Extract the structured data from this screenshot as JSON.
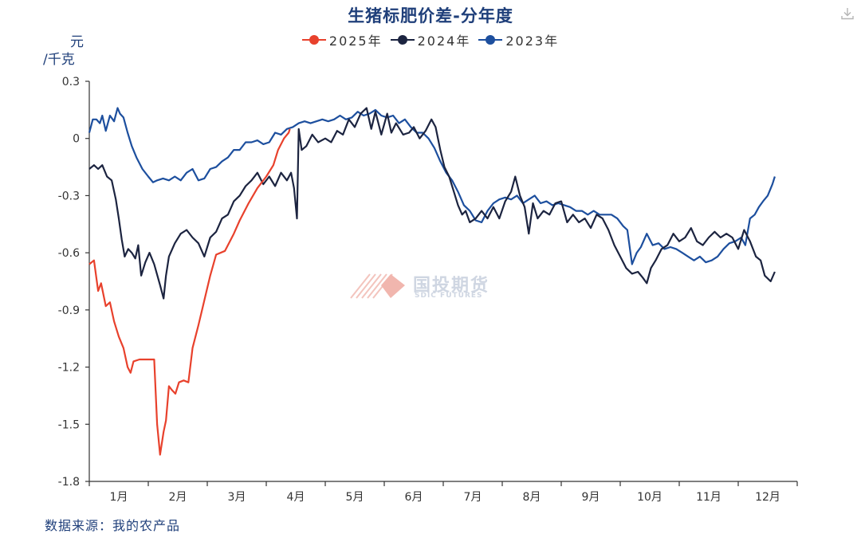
{
  "chart_data": {
    "type": "line",
    "title": "生猪标肥价差-分年度",
    "ylabel": "元/千克",
    "ylabel_parts": [
      "元",
      "/千克"
    ],
    "ylim": [
      -1.8,
      0.3
    ],
    "yticks": [
      0.3,
      0,
      -0.3,
      -0.6,
      -0.9,
      -1.2,
      -1.5,
      -1.8
    ],
    "ytick_labels": [
      "0.3",
      "0",
      "-0.3",
      "-0.6",
      "-0.9",
      "-1.2",
      "-1.5",
      "-1.8"
    ],
    "x_unit": "month",
    "xlim": [
      1,
      13
    ],
    "categories": [
      "1月",
      "2月",
      "3月",
      "4月",
      "5月",
      "6月",
      "7月",
      "8月",
      "9月",
      "10月",
      "11月",
      "12月"
    ],
    "legend_position": "top-center",
    "grid": false,
    "series": [
      {
        "name": "2025年",
        "color": "#e8412c",
        "points": [
          [
            1.0,
            -0.66
          ],
          [
            1.08,
            -0.64
          ],
          [
            1.15,
            -0.8
          ],
          [
            1.2,
            -0.76
          ],
          [
            1.28,
            -0.88
          ],
          [
            1.35,
            -0.86
          ],
          [
            1.42,
            -0.96
          ],
          [
            1.5,
            -1.04
          ],
          [
            1.58,
            -1.1
          ],
          [
            1.65,
            -1.2
          ],
          [
            1.7,
            -1.23
          ],
          [
            1.75,
            -1.17
          ],
          [
            1.85,
            -1.16
          ],
          [
            2.0,
            -1.16
          ],
          [
            2.1,
            -1.16
          ],
          [
            2.15,
            -1.5
          ],
          [
            2.2,
            -1.66
          ],
          [
            2.26,
            -1.54
          ],
          [
            2.3,
            -1.48
          ],
          [
            2.35,
            -1.3
          ],
          [
            2.4,
            -1.32
          ],
          [
            2.46,
            -1.34
          ],
          [
            2.52,
            -1.28
          ],
          [
            2.6,
            -1.27
          ],
          [
            2.68,
            -1.28
          ],
          [
            2.75,
            -1.1
          ],
          [
            2.85,
            -0.98
          ],
          [
            2.95,
            -0.85
          ],
          [
            3.05,
            -0.72
          ],
          [
            3.15,
            -0.61
          ],
          [
            3.3,
            -0.59
          ],
          [
            3.45,
            -0.5
          ],
          [
            3.55,
            -0.43
          ],
          [
            3.7,
            -0.34
          ],
          [
            3.85,
            -0.26
          ],
          [
            4.0,
            -0.2
          ],
          [
            4.12,
            -0.14
          ],
          [
            4.2,
            -0.06
          ],
          [
            4.3,
            0.0
          ],
          [
            4.38,
            0.03
          ],
          [
            4.4,
            0.05
          ]
        ]
      },
      {
        "name": "2024年",
        "color": "#1c2440",
        "points": [
          [
            1.0,
            -0.16
          ],
          [
            1.08,
            -0.14
          ],
          [
            1.15,
            -0.16
          ],
          [
            1.22,
            -0.14
          ],
          [
            1.3,
            -0.2
          ],
          [
            1.38,
            -0.22
          ],
          [
            1.45,
            -0.32
          ],
          [
            1.5,
            -0.42
          ],
          [
            1.55,
            -0.53
          ],
          [
            1.6,
            -0.62
          ],
          [
            1.66,
            -0.58
          ],
          [
            1.72,
            -0.6
          ],
          [
            1.78,
            -0.63
          ],
          [
            1.83,
            -0.56
          ],
          [
            1.88,
            -0.72
          ],
          [
            1.95,
            -0.65
          ],
          [
            2.02,
            -0.6
          ],
          [
            2.1,
            -0.66
          ],
          [
            2.2,
            -0.77
          ],
          [
            2.26,
            -0.84
          ],
          [
            2.3,
            -0.72
          ],
          [
            2.35,
            -0.62
          ],
          [
            2.45,
            -0.55
          ],
          [
            2.55,
            -0.5
          ],
          [
            2.65,
            -0.48
          ],
          [
            2.75,
            -0.52
          ],
          [
            2.85,
            -0.55
          ],
          [
            2.95,
            -0.62
          ],
          [
            3.05,
            -0.52
          ],
          [
            3.15,
            -0.49
          ],
          [
            3.25,
            -0.42
          ],
          [
            3.35,
            -0.4
          ],
          [
            3.45,
            -0.33
          ],
          [
            3.55,
            -0.3
          ],
          [
            3.65,
            -0.25
          ],
          [
            3.75,
            -0.22
          ],
          [
            3.85,
            -0.18
          ],
          [
            3.95,
            -0.24
          ],
          [
            4.05,
            -0.2
          ],
          [
            4.15,
            -0.25
          ],
          [
            4.25,
            -0.18
          ],
          [
            4.35,
            -0.22
          ],
          [
            4.42,
            -0.18
          ],
          [
            4.47,
            -0.26
          ],
          [
            4.52,
            -0.42
          ],
          [
            4.55,
            0.05
          ],
          [
            4.6,
            -0.06
          ],
          [
            4.68,
            -0.04
          ],
          [
            4.78,
            0.02
          ],
          [
            4.88,
            -0.02
          ],
          [
            5.0,
            0.0
          ],
          [
            5.1,
            -0.02
          ],
          [
            5.2,
            0.04
          ],
          [
            5.3,
            0.02
          ],
          [
            5.4,
            0.1
          ],
          [
            5.5,
            0.06
          ],
          [
            5.6,
            0.13
          ],
          [
            5.7,
            0.16
          ],
          [
            5.78,
            0.05
          ],
          [
            5.85,
            0.14
          ],
          [
            5.95,
            0.02
          ],
          [
            6.05,
            0.13
          ],
          [
            6.12,
            0.03
          ],
          [
            6.2,
            0.08
          ],
          [
            6.32,
            0.02
          ],
          [
            6.42,
            0.03
          ],
          [
            6.5,
            0.06
          ],
          [
            6.6,
            0.0
          ],
          [
            6.7,
            0.04
          ],
          [
            6.8,
            0.1
          ],
          [
            6.87,
            0.06
          ],
          [
            6.95,
            -0.06
          ],
          [
            7.02,
            -0.15
          ],
          [
            7.1,
            -0.2
          ],
          [
            7.18,
            -0.28
          ],
          [
            7.25,
            -0.35
          ],
          [
            7.32,
            -0.4
          ],
          [
            7.38,
            -0.38
          ],
          [
            7.45,
            -0.44
          ],
          [
            7.55,
            -0.42
          ],
          [
            7.65,
            -0.38
          ],
          [
            7.75,
            -0.42
          ],
          [
            7.85,
            -0.36
          ],
          [
            7.95,
            -0.42
          ],
          [
            8.05,
            -0.33
          ],
          [
            8.15,
            -0.28
          ],
          [
            8.22,
            -0.2
          ],
          [
            8.3,
            -0.3
          ],
          [
            8.38,
            -0.36
          ],
          [
            8.45,
            -0.5
          ],
          [
            8.52,
            -0.34
          ],
          [
            8.6,
            -0.42
          ],
          [
            8.7,
            -0.38
          ],
          [
            8.8,
            -0.4
          ],
          [
            8.9,
            -0.34
          ],
          [
            9.0,
            -0.33
          ],
          [
            9.1,
            -0.44
          ],
          [
            9.2,
            -0.4
          ],
          [
            9.3,
            -0.44
          ],
          [
            9.4,
            -0.42
          ],
          [
            9.5,
            -0.47
          ],
          [
            9.6,
            -0.4
          ],
          [
            9.7,
            -0.42
          ],
          [
            9.8,
            -0.48
          ],
          [
            9.9,
            -0.56
          ],
          [
            10.0,
            -0.62
          ],
          [
            10.1,
            -0.68
          ],
          [
            10.2,
            -0.71
          ],
          [
            10.3,
            -0.7
          ],
          [
            10.38,
            -0.73
          ],
          [
            10.45,
            -0.76
          ],
          [
            10.52,
            -0.68
          ],
          [
            10.6,
            -0.64
          ],
          [
            10.7,
            -0.58
          ],
          [
            10.8,
            -0.56
          ],
          [
            10.9,
            -0.5
          ],
          [
            11.0,
            -0.54
          ],
          [
            11.1,
            -0.52
          ],
          [
            11.2,
            -0.47
          ],
          [
            11.3,
            -0.54
          ],
          [
            11.4,
            -0.56
          ],
          [
            11.5,
            -0.52
          ],
          [
            11.6,
            -0.49
          ],
          [
            11.7,
            -0.52
          ],
          [
            11.8,
            -0.5
          ],
          [
            11.9,
            -0.52
          ],
          [
            12.0,
            -0.58
          ],
          [
            12.1,
            -0.48
          ],
          [
            12.2,
            -0.54
          ],
          [
            12.3,
            -0.62
          ],
          [
            12.38,
            -0.64
          ],
          [
            12.45,
            -0.72
          ],
          [
            12.55,
            -0.75
          ],
          [
            12.62,
            -0.7
          ]
        ]
      },
      {
        "name": "2023年",
        "color": "#1d4f9e",
        "points": [
          [
            1.0,
            0.03
          ],
          [
            1.06,
            0.1
          ],
          [
            1.12,
            0.1
          ],
          [
            1.18,
            0.08
          ],
          [
            1.22,
            0.12
          ],
          [
            1.28,
            0.04
          ],
          [
            1.35,
            0.12
          ],
          [
            1.42,
            0.09
          ],
          [
            1.48,
            0.16
          ],
          [
            1.52,
            0.13
          ],
          [
            1.58,
            0.11
          ],
          [
            1.65,
            0.03
          ],
          [
            1.72,
            -0.04
          ],
          [
            1.8,
            -0.1
          ],
          [
            1.9,
            -0.16
          ],
          [
            2.0,
            -0.2
          ],
          [
            2.08,
            -0.23
          ],
          [
            2.15,
            -0.22
          ],
          [
            2.25,
            -0.21
          ],
          [
            2.35,
            -0.22
          ],
          [
            2.45,
            -0.2
          ],
          [
            2.55,
            -0.22
          ],
          [
            2.65,
            -0.18
          ],
          [
            2.75,
            -0.16
          ],
          [
            2.85,
            -0.22
          ],
          [
            2.95,
            -0.21
          ],
          [
            3.05,
            -0.16
          ],
          [
            3.15,
            -0.15
          ],
          [
            3.25,
            -0.12
          ],
          [
            3.35,
            -0.1
          ],
          [
            3.45,
            -0.06
          ],
          [
            3.55,
            -0.06
          ],
          [
            3.65,
            -0.02
          ],
          [
            3.75,
            -0.02
          ],
          [
            3.85,
            -0.01
          ],
          [
            3.95,
            -0.03
          ],
          [
            4.05,
            -0.02
          ],
          [
            4.15,
            0.03
          ],
          [
            4.25,
            0.02
          ],
          [
            4.35,
            0.05
          ],
          [
            4.45,
            0.06
          ],
          [
            4.55,
            0.08
          ],
          [
            4.65,
            0.09
          ],
          [
            4.75,
            0.08
          ],
          [
            4.85,
            0.09
          ],
          [
            4.95,
            0.1
          ],
          [
            5.05,
            0.09
          ],
          [
            5.15,
            0.1
          ],
          [
            5.25,
            0.12
          ],
          [
            5.35,
            0.1
          ],
          [
            5.45,
            0.11
          ],
          [
            5.55,
            0.14
          ],
          [
            5.65,
            0.12
          ],
          [
            5.75,
            0.13
          ],
          [
            5.85,
            0.15
          ],
          [
            5.95,
            0.12
          ],
          [
            6.05,
            0.11
          ],
          [
            6.15,
            0.12
          ],
          [
            6.25,
            0.08
          ],
          [
            6.35,
            0.1
          ],
          [
            6.45,
            0.06
          ],
          [
            6.55,
            0.03
          ],
          [
            6.65,
            0.03
          ],
          [
            6.75,
            0.0
          ],
          [
            6.85,
            -0.05
          ],
          [
            6.95,
            -0.12
          ],
          [
            7.05,
            -0.18
          ],
          [
            7.15,
            -0.22
          ],
          [
            7.25,
            -0.28
          ],
          [
            7.35,
            -0.35
          ],
          [
            7.45,
            -0.38
          ],
          [
            7.55,
            -0.43
          ],
          [
            7.65,
            -0.44
          ],
          [
            7.75,
            -0.38
          ],
          [
            7.85,
            -0.34
          ],
          [
            7.95,
            -0.32
          ],
          [
            8.05,
            -0.31
          ],
          [
            8.15,
            -0.32
          ],
          [
            8.25,
            -0.3
          ],
          [
            8.35,
            -0.34
          ],
          [
            8.45,
            -0.32
          ],
          [
            8.55,
            -0.3
          ],
          [
            8.65,
            -0.34
          ],
          [
            8.75,
            -0.33
          ],
          [
            8.85,
            -0.35
          ],
          [
            8.95,
            -0.34
          ],
          [
            9.05,
            -0.35
          ],
          [
            9.15,
            -0.36
          ],
          [
            9.25,
            -0.38
          ],
          [
            9.35,
            -0.38
          ],
          [
            9.45,
            -0.4
          ],
          [
            9.55,
            -0.38
          ],
          [
            9.65,
            -0.4
          ],
          [
            9.75,
            -0.4
          ],
          [
            9.85,
            -0.4
          ],
          [
            9.95,
            -0.42
          ],
          [
            10.05,
            -0.46
          ],
          [
            10.12,
            -0.48
          ],
          [
            10.2,
            -0.66
          ],
          [
            10.28,
            -0.6
          ],
          [
            10.35,
            -0.57
          ],
          [
            10.45,
            -0.5
          ],
          [
            10.55,
            -0.56
          ],
          [
            10.65,
            -0.55
          ],
          [
            10.75,
            -0.58
          ],
          [
            10.85,
            -0.57
          ],
          [
            10.95,
            -0.58
          ],
          [
            11.05,
            -0.6
          ],
          [
            11.15,
            -0.62
          ],
          [
            11.25,
            -0.64
          ],
          [
            11.35,
            -0.62
          ],
          [
            11.45,
            -0.65
          ],
          [
            11.55,
            -0.64
          ],
          [
            11.65,
            -0.62
          ],
          [
            11.75,
            -0.58
          ],
          [
            11.85,
            -0.55
          ],
          [
            11.95,
            -0.54
          ],
          [
            12.05,
            -0.52
          ],
          [
            12.12,
            -0.56
          ],
          [
            12.2,
            -0.42
          ],
          [
            12.28,
            -0.4
          ],
          [
            12.35,
            -0.36
          ],
          [
            12.42,
            -0.33
          ],
          [
            12.5,
            -0.3
          ],
          [
            12.58,
            -0.24
          ],
          [
            12.62,
            -0.2
          ]
        ]
      }
    ]
  },
  "watermark": {
    "text": "国投期货",
    "sub": "SDIC FUTURES"
  },
  "source": "数据来源：我的农产品",
  "icons": {
    "download": "download-icon"
  }
}
